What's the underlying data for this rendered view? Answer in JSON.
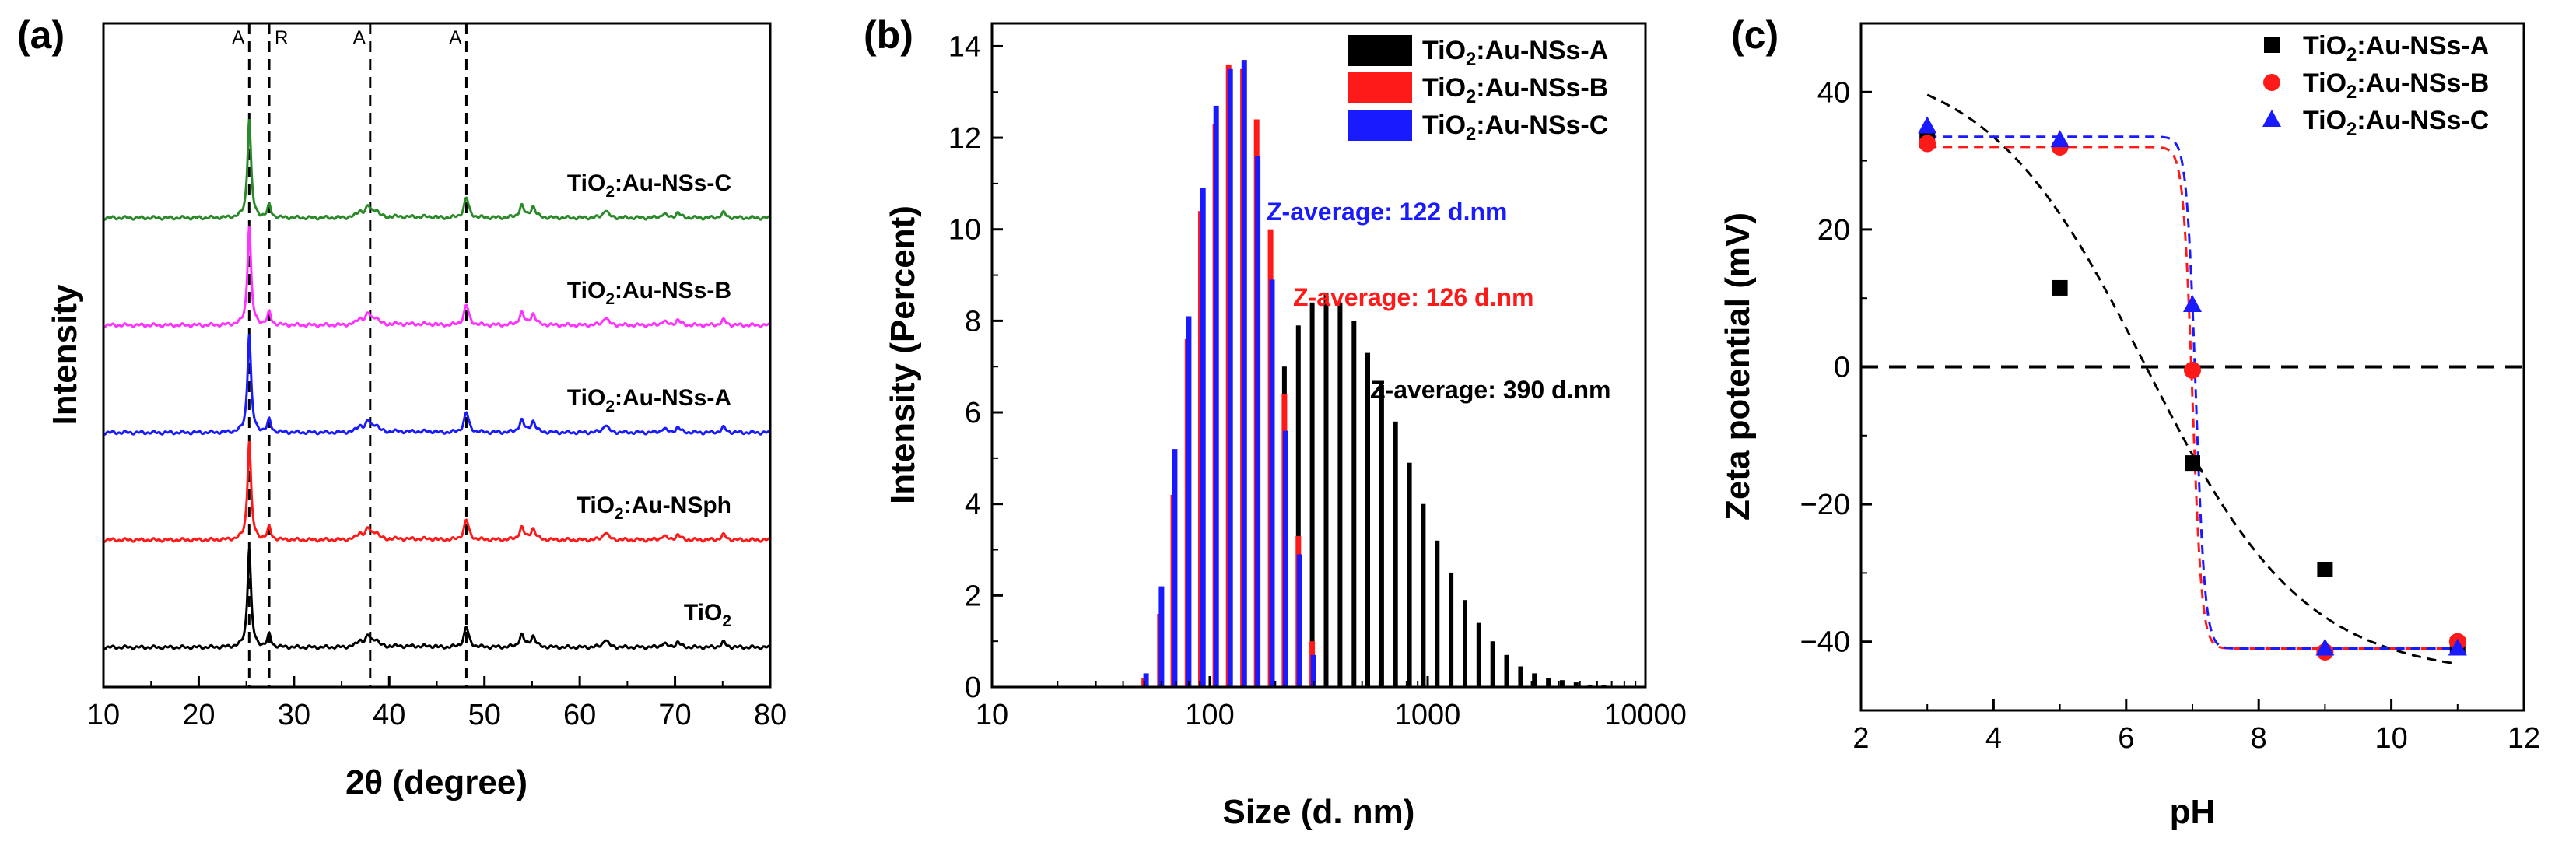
{
  "chart_data": [
    {
      "panel": "(a)",
      "type": "line",
      "xlabel": "2θ (degree)",
      "ylabel": "Intensity",
      "xlim": [
        10,
        80
      ],
      "xticks": [
        10,
        20,
        30,
        40,
        50,
        60,
        70,
        80
      ],
      "y_tick_labels": false,
      "reference_lines": [
        {
          "x": 25.3,
          "label": "A"
        },
        {
          "x": 27.4,
          "label": "R"
        },
        {
          "x": 38.0,
          "label": "A"
        },
        {
          "x": 48.1,
          "label": "A"
        }
      ],
      "peaks": [
        {
          "x": 25.3,
          "h": 1.0
        },
        {
          "x": 27.4,
          "h": 0.12
        },
        {
          "x": 36.9,
          "h": 0.06
        },
        {
          "x": 37.8,
          "h": 0.1
        },
        {
          "x": 38.6,
          "h": 0.07
        },
        {
          "x": 48.1,
          "h": 0.2
        },
        {
          "x": 53.9,
          "h": 0.12
        },
        {
          "x": 55.1,
          "h": 0.11
        },
        {
          "x": 62.7,
          "h": 0.08
        },
        {
          "x": 68.8,
          "h": 0.04
        },
        {
          "x": 70.3,
          "h": 0.05
        },
        {
          "x": 75.1,
          "h": 0.05
        }
      ],
      "series": [
        {
          "name": "TiO2:Au-NSs-C",
          "color": "#2a8a2a",
          "offset": 4
        },
        {
          "name": "TiO2:Au-NSs-B",
          "color": "#ff33ff",
          "offset": 3
        },
        {
          "name": "TiO2:Au-NSs-A",
          "color": "#1a1aff",
          "offset": 2
        },
        {
          "name": "TiO2:Au-NSph",
          "color": "#ff1a1a",
          "offset": 1
        },
        {
          "name": "TiO2",
          "color": "#000000",
          "offset": 0
        }
      ]
    },
    {
      "panel": "(b)",
      "type": "bar",
      "xlabel": "Size (d. nm)",
      "ylabel": "Intensity (Percent)",
      "xscale": "log",
      "xlim": [
        10,
        10000
      ],
      "ylim": [
        0,
        14.5
      ],
      "xticks": [
        10,
        100,
        1000,
        10000
      ],
      "yticks": [
        0,
        2,
        4,
        6,
        8,
        10,
        12,
        14
      ],
      "legend_position": "top-right",
      "annotations": [
        {
          "text": "Z-average: 122 d.nm",
          "color": "#1a1aff"
        },
        {
          "text": "Z-average: 126 d.nm",
          "color": "#ff1a1a"
        },
        {
          "text": "Z-average: 390 d.nm",
          "color": "#000000"
        }
      ],
      "series": [
        {
          "name": "TiO2:Au-NSs-A",
          "color": "#000000",
          "x": [
            220,
            255,
            295,
            342,
            396,
            459,
            531,
            615,
            712,
            825,
            955,
            1106,
            1281,
            1484,
            1718,
            1990,
            2305,
            2669,
            3091,
            3580,
            4145,
            4801,
            5560,
            6439
          ],
          "values": [
            7.0,
            7.9,
            8.4,
            8.6,
            8.4,
            8.0,
            7.3,
            6.6,
            5.8,
            4.9,
            4.0,
            3.2,
            2.5,
            1.9,
            1.4,
            1.0,
            0.7,
            0.45,
            0.3,
            0.2,
            0.15,
            0.1,
            0.05,
            0.05
          ]
        },
        {
          "name": "TiO2:Au-NSs-B",
          "color": "#ff1a1a",
          "x": [
            50,
            59,
            68,
            79,
            91,
            106,
            122,
            142,
            164,
            190,
            220,
            255,
            295
          ],
          "values": [
            0.2,
            1.6,
            4.2,
            7.6,
            10.4,
            12.3,
            13.6,
            13.5,
            12.4,
            10.0,
            6.4,
            3.3,
            1.0
          ]
        },
        {
          "name": "TiO2:Au-NSs-C",
          "color": "#1a1aff",
          "x": [
            51,
            60,
            69,
            80,
            93,
            107,
            124,
            144,
            166,
            193,
            223,
            258,
            299
          ],
          "values": [
            0.3,
            2.2,
            5.2,
            8.1,
            10.9,
            12.7,
            13.5,
            13.7,
            11.6,
            8.9,
            5.6,
            2.9,
            0.7
          ]
        }
      ]
    },
    {
      "panel": "(c)",
      "type": "scatter",
      "xlabel": "pH",
      "ylabel": "Zeta potential (mV)",
      "xlim": [
        2,
        12
      ],
      "ylim": [
        -50,
        50
      ],
      "xticks": [
        2,
        4,
        6,
        8,
        10,
        12
      ],
      "yticks": [
        -40,
        -20,
        0,
        20,
        40
      ],
      "zero_line": true,
      "legend_position": "top-right",
      "series": [
        {
          "name": "TiO2:Au-NSs-A",
          "color": "#000000",
          "marker": "square",
          "x": [
            3,
            5,
            7,
            9,
            11
          ],
          "values": [
            33,
            11.5,
            -14,
            -29.5,
            -40.5
          ],
          "fit": {
            "form": "logistic",
            "A1": 45,
            "A2": -45,
            "x0": 6.3,
            "dx": 1.2
          }
        },
        {
          "name": "TiO2:Au-NSs-B",
          "color": "#ff1a1a",
          "marker": "circle",
          "x": [
            3,
            5,
            7,
            9,
            11
          ],
          "values": [
            32.5,
            32,
            -0.5,
            -41.5,
            -40
          ],
          "fit": {
            "form": "logistic",
            "A1": 32,
            "A2": -41,
            "x0": 7.0,
            "dx": 0.07
          }
        },
        {
          "name": "TiO2:Au-NSs-C",
          "color": "#1a1aff",
          "marker": "triangle",
          "x": [
            3,
            5,
            7,
            9,
            11
          ],
          "values": [
            35,
            33,
            9,
            -41,
            -41
          ],
          "fit": {
            "form": "logistic",
            "A1": 33.5,
            "A2": -41,
            "x0": 7.05,
            "dx": 0.07
          }
        }
      ]
    }
  ]
}
